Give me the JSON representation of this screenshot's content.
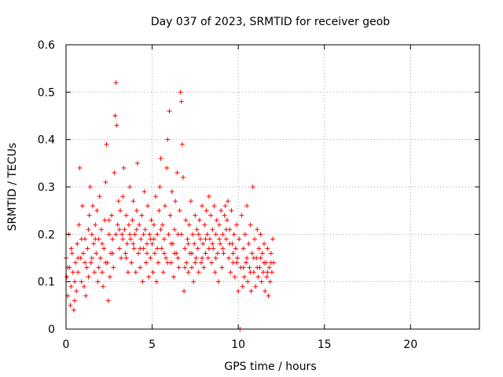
{
  "chart_data": {
    "type": "scatter",
    "title": "Day 037 of 2023, SRMTID for receiver geob",
    "xlabel": "GPS time / hours",
    "ylabel": "SRMTID / TECUs",
    "xlim": [
      0,
      24
    ],
    "ylim": [
      0,
      0.6
    ],
    "x_ticks": [
      "0",
      "5",
      "10",
      "15",
      "20"
    ],
    "x_tick_values": [
      0,
      5,
      10,
      15,
      20
    ],
    "y_ticks": [
      "0",
      "0.1",
      "0.2",
      "0.3",
      "0.4",
      "0.5",
      "0.6"
    ],
    "y_tick_values": [
      0,
      0.1,
      0.2,
      0.3,
      0.4,
      0.5,
      0.6
    ],
    "grid": true,
    "marker": "plus",
    "series": [
      {
        "name": "SRMTID",
        "color": "#ff0000",
        "points": [
          [
            0.0,
            0.15
          ],
          [
            0.05,
            0.11
          ],
          [
            0.1,
            0.07
          ],
          [
            0.15,
            0.2
          ],
          [
            0.2,
            0.13
          ],
          [
            0.25,
            0.05
          ],
          [
            0.3,
            0.09
          ],
          [
            0.35,
            0.16
          ],
          [
            0.4,
            0.12
          ],
          [
            0.45,
            0.04
          ],
          [
            0.5,
            0.1
          ],
          [
            0.55,
            0.14
          ],
          [
            0.6,
            0.08
          ],
          [
            0.65,
            0.18
          ],
          [
            0.7,
            0.12
          ],
          [
            0.75,
            0.22
          ],
          [
            0.8,
            0.34
          ],
          [
            0.85,
            0.15
          ],
          [
            0.9,
            0.1
          ],
          [
            0.95,
            0.26
          ],
          [
            1.0,
            0.16
          ],
          [
            1.05,
            0.09
          ],
          [
            1.1,
            0.19
          ],
          [
            1.15,
            0.07
          ],
          [
            1.2,
            0.13
          ],
          [
            1.25,
            0.17
          ],
          [
            1.3,
            0.11
          ],
          [
            1.35,
            0.24
          ],
          [
            1.4,
            0.3
          ],
          [
            1.45,
            0.14
          ],
          [
            1.5,
            0.2
          ],
          [
            1.55,
            0.26
          ],
          [
            1.6,
            0.18
          ],
          [
            1.65,
            0.12
          ],
          [
            1.7,
            0.22
          ],
          [
            1.75,
            0.16
          ],
          [
            1.8,
            0.25
          ],
          [
            1.85,
            0.1
          ],
          [
            1.9,
            0.19
          ],
          [
            1.95,
            0.28
          ],
          [
            2.0,
            0.15
          ],
          [
            2.05,
            0.21
          ],
          [
            2.1,
            0.12
          ],
          [
            2.15,
            0.09
          ],
          [
            2.2,
            0.17
          ],
          [
            2.25,
            0.23
          ],
          [
            2.3,
            0.31
          ],
          [
            2.35,
            0.39
          ],
          [
            2.4,
            0.14
          ],
          [
            2.45,
            0.06
          ],
          [
            2.5,
            0.2
          ],
          [
            2.55,
            0.11
          ],
          [
            2.6,
            0.16
          ],
          [
            2.65,
            0.24
          ],
          [
            2.7,
            0.19
          ],
          [
            2.75,
            0.13
          ],
          [
            2.8,
            0.33
          ],
          [
            2.85,
            0.45
          ],
          [
            2.9,
            0.52
          ],
          [
            2.95,
            0.43
          ],
          [
            3.0,
            0.22
          ],
          [
            3.05,
            0.27
          ],
          [
            3.1,
            0.17
          ],
          [
            3.15,
            0.25
          ],
          [
            3.2,
            0.15
          ],
          [
            3.25,
            0.2
          ],
          [
            3.3,
            0.28
          ],
          [
            3.35,
            0.34
          ],
          [
            3.4,
            0.21
          ],
          [
            3.45,
            0.16
          ],
          [
            3.5,
            0.24
          ],
          [
            3.55,
            0.18
          ],
          [
            3.6,
            0.12
          ],
          [
            3.65,
            0.22
          ],
          [
            3.7,
            0.3
          ],
          [
            3.75,
            0.19
          ],
          [
            3.8,
            0.14
          ],
          [
            3.85,
            0.23
          ],
          [
            3.9,
            0.27
          ],
          [
            3.95,
            0.17
          ],
          [
            4.0,
            0.2
          ],
          [
            4.05,
            0.12
          ],
          [
            4.1,
            0.25
          ],
          [
            4.15,
            0.35
          ],
          [
            4.2,
            0.16
          ],
          [
            4.25,
            0.22
          ],
          [
            4.3,
            0.13
          ],
          [
            4.35,
            0.19
          ],
          [
            4.4,
            0.24
          ],
          [
            4.45,
            0.1
          ],
          [
            4.5,
            0.17
          ],
          [
            4.55,
            0.29
          ],
          [
            4.6,
            0.21
          ],
          [
            4.65,
            0.14
          ],
          [
            4.7,
            0.18
          ],
          [
            4.75,
            0.26
          ],
          [
            4.8,
            0.11
          ],
          [
            4.85,
            0.2
          ],
          [
            4.9,
            0.15
          ],
          [
            4.95,
            0.23
          ],
          [
            5.0,
            0.18
          ],
          [
            5.05,
            0.12
          ],
          [
            5.1,
            0.22
          ],
          [
            5.15,
            0.16
          ],
          [
            5.2,
            0.28
          ],
          [
            5.25,
            0.1
          ],
          [
            5.3,
            0.2
          ],
          [
            5.35,
            0.14
          ],
          [
            5.4,
            0.25
          ],
          [
            5.45,
            0.3
          ],
          [
            5.5,
            0.36
          ],
          [
            5.55,
            0.17
          ],
          [
            5.6,
            0.22
          ],
          [
            5.65,
            0.12
          ],
          [
            5.7,
            0.19
          ],
          [
            5.75,
            0.26
          ],
          [
            5.8,
            0.15
          ],
          [
            5.85,
            0.34
          ],
          [
            5.9,
            0.4
          ],
          [
            5.95,
            0.2
          ],
          [
            6.0,
            0.46
          ],
          [
            6.05,
            0.24
          ],
          [
            6.1,
            0.14
          ],
          [
            6.15,
            0.29
          ],
          [
            6.2,
            0.18
          ],
          [
            6.25,
            0.11
          ],
          [
            6.3,
            0.21
          ],
          [
            6.35,
            0.27
          ],
          [
            6.4,
            0.16
          ],
          [
            6.45,
            0.33
          ],
          [
            6.5,
            0.2
          ],
          [
            6.55,
            0.13
          ],
          [
            6.6,
            0.25
          ],
          [
            6.65,
            0.5
          ],
          [
            6.7,
            0.48
          ],
          [
            6.75,
            0.39
          ],
          [
            6.8,
            0.32
          ],
          [
            6.85,
            0.08
          ],
          [
            6.9,
            0.17
          ],
          [
            6.95,
            0.23
          ],
          [
            7.0,
            0.14
          ],
          [
            7.05,
            0.19
          ],
          [
            7.1,
            0.12
          ],
          [
            7.15,
            0.22
          ],
          [
            7.2,
            0.16
          ],
          [
            7.25,
            0.27
          ],
          [
            7.3,
            0.13
          ],
          [
            7.35,
            0.2
          ],
          [
            7.4,
            0.1
          ],
          [
            7.45,
            0.18
          ],
          [
            7.5,
            0.24
          ],
          [
            7.55,
            0.15
          ],
          [
            7.6,
            0.21
          ],
          [
            7.65,
            0.17
          ],
          [
            7.7,
            0.12
          ],
          [
            7.75,
            0.23
          ],
          [
            7.8,
            0.19
          ],
          [
            7.85,
            0.14
          ],
          [
            7.9,
            0.26
          ],
          [
            7.95,
            0.18
          ],
          [
            8.0,
            0.13
          ],
          [
            8.05,
            0.22
          ],
          [
            8.1,
            0.16
          ],
          [
            8.15,
            0.25
          ],
          [
            8.2,
            0.2
          ],
          [
            8.25,
            0.15
          ],
          [
            8.3,
            0.28
          ],
          [
            8.35,
            0.19
          ],
          [
            8.4,
            0.24
          ],
          [
            8.45,
            0.14
          ],
          [
            8.5,
            0.21
          ],
          [
            8.55,
            0.17
          ],
          [
            8.6,
            0.26
          ],
          [
            8.65,
            0.12
          ],
          [
            8.7,
            0.2
          ],
          [
            8.75,
            0.23
          ],
          [
            8.8,
            0.16
          ],
          [
            8.85,
            0.1
          ],
          [
            8.9,
            0.22
          ],
          [
            8.95,
            0.18
          ],
          [
            9.0,
            0.25
          ],
          [
            9.05,
            0.13
          ],
          [
            9.1,
            0.2
          ],
          [
            9.15,
            0.16
          ],
          [
            9.2,
            0.24
          ],
          [
            9.25,
            0.26
          ],
          [
            9.3,
            0.19
          ],
          [
            9.35,
            0.23
          ],
          [
            9.4,
            0.27
          ],
          [
            9.45,
            0.15
          ],
          [
            9.5,
            0.21
          ],
          [
            9.55,
            0.12
          ],
          [
            9.6,
            0.25
          ],
          [
            9.65,
            0.18
          ],
          [
            9.7,
            0.14
          ],
          [
            9.75,
            0.2
          ],
          [
            9.8,
            0.11
          ],
          [
            9.85,
            0.17
          ],
          [
            9.9,
            0.22
          ],
          [
            9.95,
            0.15
          ],
          [
            10.0,
            0.08
          ],
          [
            10.05,
            0.19
          ],
          [
            10.1,
            0.0
          ],
          [
            10.15,
            0.13
          ],
          [
            10.2,
            0.24
          ],
          [
            10.25,
            0.09
          ],
          [
            10.3,
            0.17
          ],
          [
            10.35,
            0.11
          ],
          [
            10.4,
            0.2
          ],
          [
            10.45,
            0.14
          ],
          [
            10.5,
            0.26
          ],
          [
            10.55,
            0.1
          ],
          [
            10.6,
            0.18
          ],
          [
            10.65,
            0.13
          ],
          [
            10.7,
            0.22
          ],
          [
            10.75,
            0.08
          ],
          [
            10.8,
            0.16
          ],
          [
            10.85,
            0.3
          ],
          [
            10.9,
            0.12
          ],
          [
            10.95,
            0.19
          ],
          [
            11.0,
            0.09
          ],
          [
            11.05,
            0.15
          ],
          [
            11.1,
            0.21
          ],
          [
            11.15,
            0.11
          ],
          [
            11.2,
            0.17
          ],
          [
            11.25,
            0.13
          ],
          [
            11.3,
            0.2
          ],
          [
            11.35,
            0.1
          ],
          [
            11.4,
            0.16
          ],
          [
            11.45,
            0.12
          ],
          [
            11.5,
            0.18
          ],
          [
            11.55,
            0.08
          ],
          [
            11.6,
            0.14
          ],
          [
            11.65,
            0.11
          ],
          [
            11.7,
            0.17
          ],
          [
            11.75,
            0.07
          ],
          [
            11.8,
            0.13
          ],
          [
            11.85,
            0.1
          ],
          [
            11.9,
            0.16
          ],
          [
            11.95,
            0.12
          ],
          [
            12.0,
            0.19
          ],
          [
            12.05,
            0.14
          ],
          [
            0.1,
            0.13
          ],
          [
            0.3,
            0.17
          ],
          [
            0.5,
            0.06
          ],
          [
            0.7,
            0.15
          ],
          [
            0.9,
            0.19
          ],
          [
            1.1,
            0.14
          ],
          [
            1.3,
            0.21
          ],
          [
            1.5,
            0.15
          ],
          [
            1.7,
            0.19
          ],
          [
            1.9,
            0.13
          ],
          [
            2.1,
            0.18
          ],
          [
            2.3,
            0.14
          ],
          [
            2.5,
            0.23
          ],
          [
            2.7,
            0.16
          ],
          [
            2.9,
            0.2
          ],
          [
            3.1,
            0.21
          ],
          [
            3.3,
            0.19
          ],
          [
            3.5,
            0.15
          ],
          [
            3.7,
            0.2
          ],
          [
            3.9,
            0.18
          ],
          [
            4.1,
            0.21
          ],
          [
            4.3,
            0.17
          ],
          [
            4.5,
            0.2
          ],
          [
            4.7,
            0.16
          ],
          [
            4.9,
            0.19
          ],
          [
            5.1,
            0.19
          ],
          [
            5.3,
            0.17
          ],
          [
            5.5,
            0.21
          ],
          [
            5.7,
            0.16
          ],
          [
            5.9,
            0.14
          ],
          [
            6.1,
            0.18
          ],
          [
            6.3,
            0.16
          ],
          [
            6.5,
            0.15
          ],
          [
            6.7,
            0.2
          ],
          [
            6.9,
            0.13
          ],
          [
            7.1,
            0.18
          ],
          [
            7.3,
            0.16
          ],
          [
            7.5,
            0.14
          ],
          [
            7.7,
            0.2
          ],
          [
            7.9,
            0.15
          ],
          [
            8.1,
            0.19
          ],
          [
            8.3,
            0.17
          ],
          [
            8.5,
            0.18
          ],
          [
            8.7,
            0.15
          ],
          [
            8.9,
            0.19
          ],
          [
            9.1,
            0.17
          ],
          [
            9.3,
            0.21
          ],
          [
            9.5,
            0.18
          ],
          [
            9.7,
            0.16
          ],
          [
            9.9,
            0.14
          ],
          [
            10.3,
            0.13
          ],
          [
            10.5,
            0.15
          ],
          [
            10.7,
            0.12
          ],
          [
            10.9,
            0.15
          ],
          [
            11.1,
            0.13
          ],
          [
            11.3,
            0.15
          ],
          [
            11.5,
            0.14
          ],
          [
            11.7,
            0.12
          ],
          [
            11.9,
            0.14
          ]
        ]
      }
    ]
  }
}
